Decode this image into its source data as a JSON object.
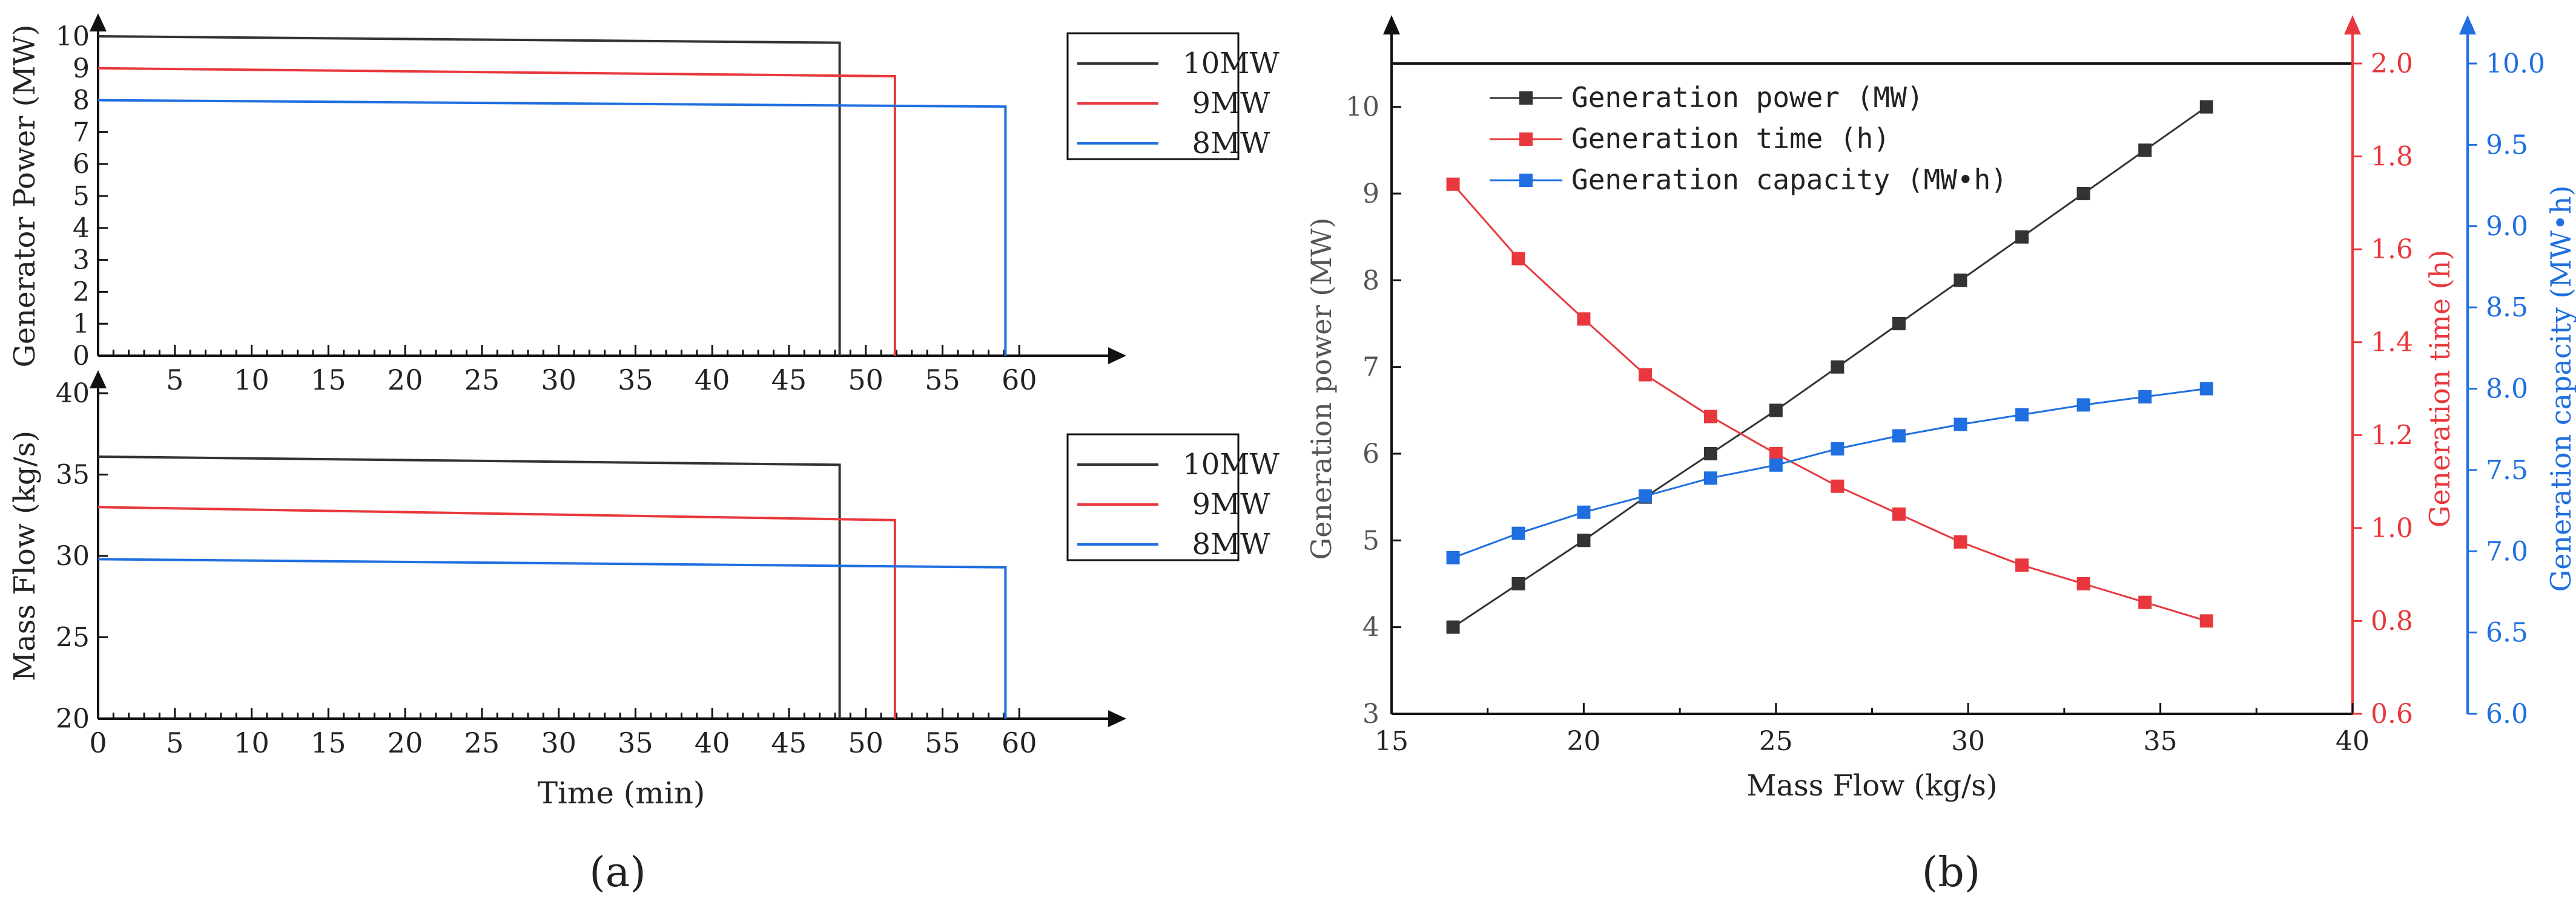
{
  "colors": {
    "black_series": "#333333",
    "red_series": "#e8383d",
    "blue_series": "#1f6fe0",
    "axis": "#111111"
  },
  "panel_labels": {
    "a": "(a)",
    "b": "(b)"
  },
  "chart_data": [
    {
      "id": "a-top",
      "type": "line",
      "title": "",
      "xlabel": "",
      "ylabel": "Generator Power (MW)",
      "xlim": [
        0,
        65
      ],
      "ylim": [
        0,
        10
      ],
      "xticks": [
        5,
        10,
        15,
        20,
        25,
        30,
        35,
        40,
        45,
        50,
        55,
        60
      ],
      "yticks": [
        0,
        1,
        2,
        3,
        4,
        5,
        6,
        7,
        8,
        9,
        10
      ],
      "legend": "top-right",
      "series": [
        {
          "name": "10MW",
          "color": "#333333",
          "x": [
            0,
            48.3,
            48.3
          ],
          "y": [
            10.0,
            9.8,
            0
          ]
        },
        {
          "name": "9MW",
          "color": "#e8383d",
          "x": [
            0,
            51.9,
            51.9
          ],
          "y": [
            9.0,
            8.75,
            0
          ]
        },
        {
          "name": "8MW",
          "color": "#1f6fe0",
          "x": [
            0,
            59.1,
            59.1
          ],
          "y": [
            8.0,
            7.8,
            0
          ]
        }
      ]
    },
    {
      "id": "a-bottom",
      "type": "line",
      "title": "",
      "xlabel": "Time (min)",
      "ylabel": "Mass Flow (kg/s)",
      "xlim": [
        0,
        65
      ],
      "ylim": [
        20,
        40
      ],
      "xticks": [
        0,
        5,
        10,
        15,
        20,
        25,
        30,
        35,
        40,
        45,
        50,
        55,
        60
      ],
      "yticks": [
        20,
        25,
        30,
        35,
        40
      ],
      "legend": "top-right",
      "series": [
        {
          "name": "10MW",
          "color": "#333333",
          "x": [
            0,
            48.3,
            48.3
          ],
          "y": [
            36.1,
            35.6,
            20
          ]
        },
        {
          "name": "9MW",
          "color": "#e8383d",
          "x": [
            0,
            51.9,
            51.9
          ],
          "y": [
            33.0,
            32.2,
            20
          ]
        },
        {
          "name": "8MW",
          "color": "#1f6fe0",
          "x": [
            0,
            59.1,
            59.1
          ],
          "y": [
            29.8,
            29.3,
            20
          ]
        }
      ]
    },
    {
      "id": "b",
      "type": "line",
      "title": "",
      "xlabel": "Mass Flow (kg/s)",
      "xlim": [
        15,
        40
      ],
      "xticks": [
        15,
        20,
        25,
        30,
        35,
        40
      ],
      "x": [
        16.6,
        18.3,
        20.0,
        21.6,
        23.3,
        25.0,
        26.6,
        28.2,
        29.8,
        31.4,
        33.0,
        34.6,
        36.2
      ],
      "legend": "top-left",
      "axes": {
        "left": {
          "label": "Generation power (MW)",
          "ylim": [
            3,
            10.5
          ],
          "ticks": [
            3,
            4,
            5,
            6,
            7,
            8,
            9,
            10
          ],
          "decimals": 0
        },
        "right1": {
          "label": "Generation time (h)",
          "ylim": [
            0.6,
            2.0
          ],
          "ticks": [
            0.6,
            0.8,
            1.0,
            1.2,
            1.4,
            1.6,
            1.8,
            2.0
          ],
          "decimals": 1
        },
        "right2": {
          "label": "Generation capacity (MW•h)",
          "ylim": [
            6.0,
            10.0
          ],
          "ticks": [
            6.0,
            6.5,
            7.0,
            7.5,
            8.0,
            8.5,
            9.0,
            9.5,
            10.0
          ],
          "decimals": 1
        }
      },
      "series": [
        {
          "name": "Generation power (MW)",
          "axis": "left",
          "color": "#333333",
          "values": [
            4.0,
            4.5,
            5.0,
            5.5,
            6.0,
            6.5,
            7.0,
            7.5,
            8.0,
            8.5,
            9.0,
            9.5,
            10.0
          ]
        },
        {
          "name": "Generation time (h)",
          "axis": "right1",
          "color": "#e8383d",
          "values": [
            1.74,
            1.58,
            1.45,
            1.33,
            1.24,
            1.16,
            1.09,
            1.03,
            0.97,
            0.92,
            0.88,
            0.84,
            0.8
          ]
        },
        {
          "name": "Generation capacity (MW•h)",
          "axis": "right2",
          "color": "#1f6fe0",
          "values": [
            6.96,
            7.11,
            7.24,
            7.34,
            7.45,
            7.53,
            7.63,
            7.71,
            7.78,
            7.84,
            7.9,
            7.95,
            8.0
          ]
        }
      ]
    }
  ]
}
